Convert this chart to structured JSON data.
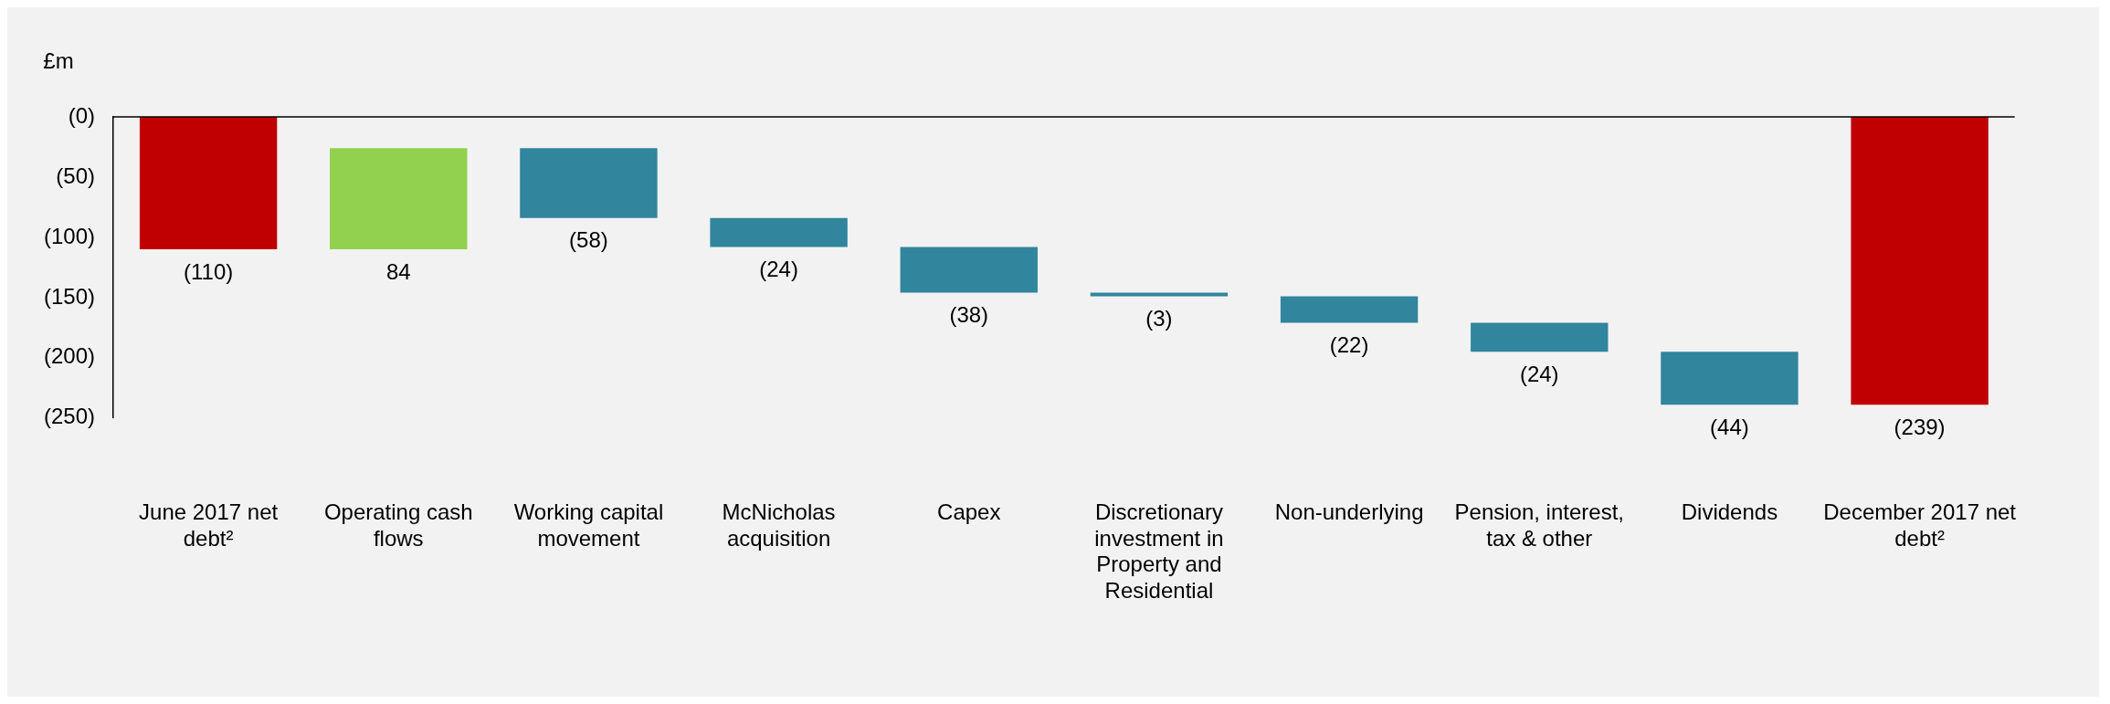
{
  "chart_data": {
    "type": "bar",
    "ylabel": "£m",
    "categories": [
      "June 2017 net debt²",
      "Operating cash flows",
      "Working capital movement",
      "McNicholas acquisition",
      "Capex",
      "Discretionary investment in Property and Residential",
      "Non-underlying",
      "Pension, interest, tax & other",
      "Dividends",
      "December 2017 net debt²"
    ],
    "values": [
      -110,
      84,
      -58,
      -24,
      -38,
      -3,
      -22,
      -24,
      -44,
      -239
    ],
    "base": [
      0,
      -110,
      -26,
      -84,
      -108,
      -146,
      -149,
      -171,
      -195,
      0
    ],
    "colors": [
      "#c00000",
      "#92d050",
      "#31859c",
      "#31859c",
      "#31859c",
      "#31859c",
      "#31859c",
      "#31859c",
      "#31859c",
      "#c00000"
    ],
    "value_labels": [
      "(110)",
      "84",
      "(58)",
      "(24)",
      "(38)",
      "(3)",
      "(22)",
      "(24)",
      "(44)",
      "(239)"
    ],
    "ylim": [
      -250,
      0
    ],
    "yticks": [
      {
        "value": 0,
        "label": "(0)"
      },
      {
        "value": -50,
        "label": "(50)"
      },
      {
        "value": -100,
        "label": "(100)"
      },
      {
        "value": -150,
        "label": "(150)"
      },
      {
        "value": -200,
        "label": "(200)"
      },
      {
        "value": -250,
        "label": "(250)"
      }
    ],
    "grid": false
  }
}
